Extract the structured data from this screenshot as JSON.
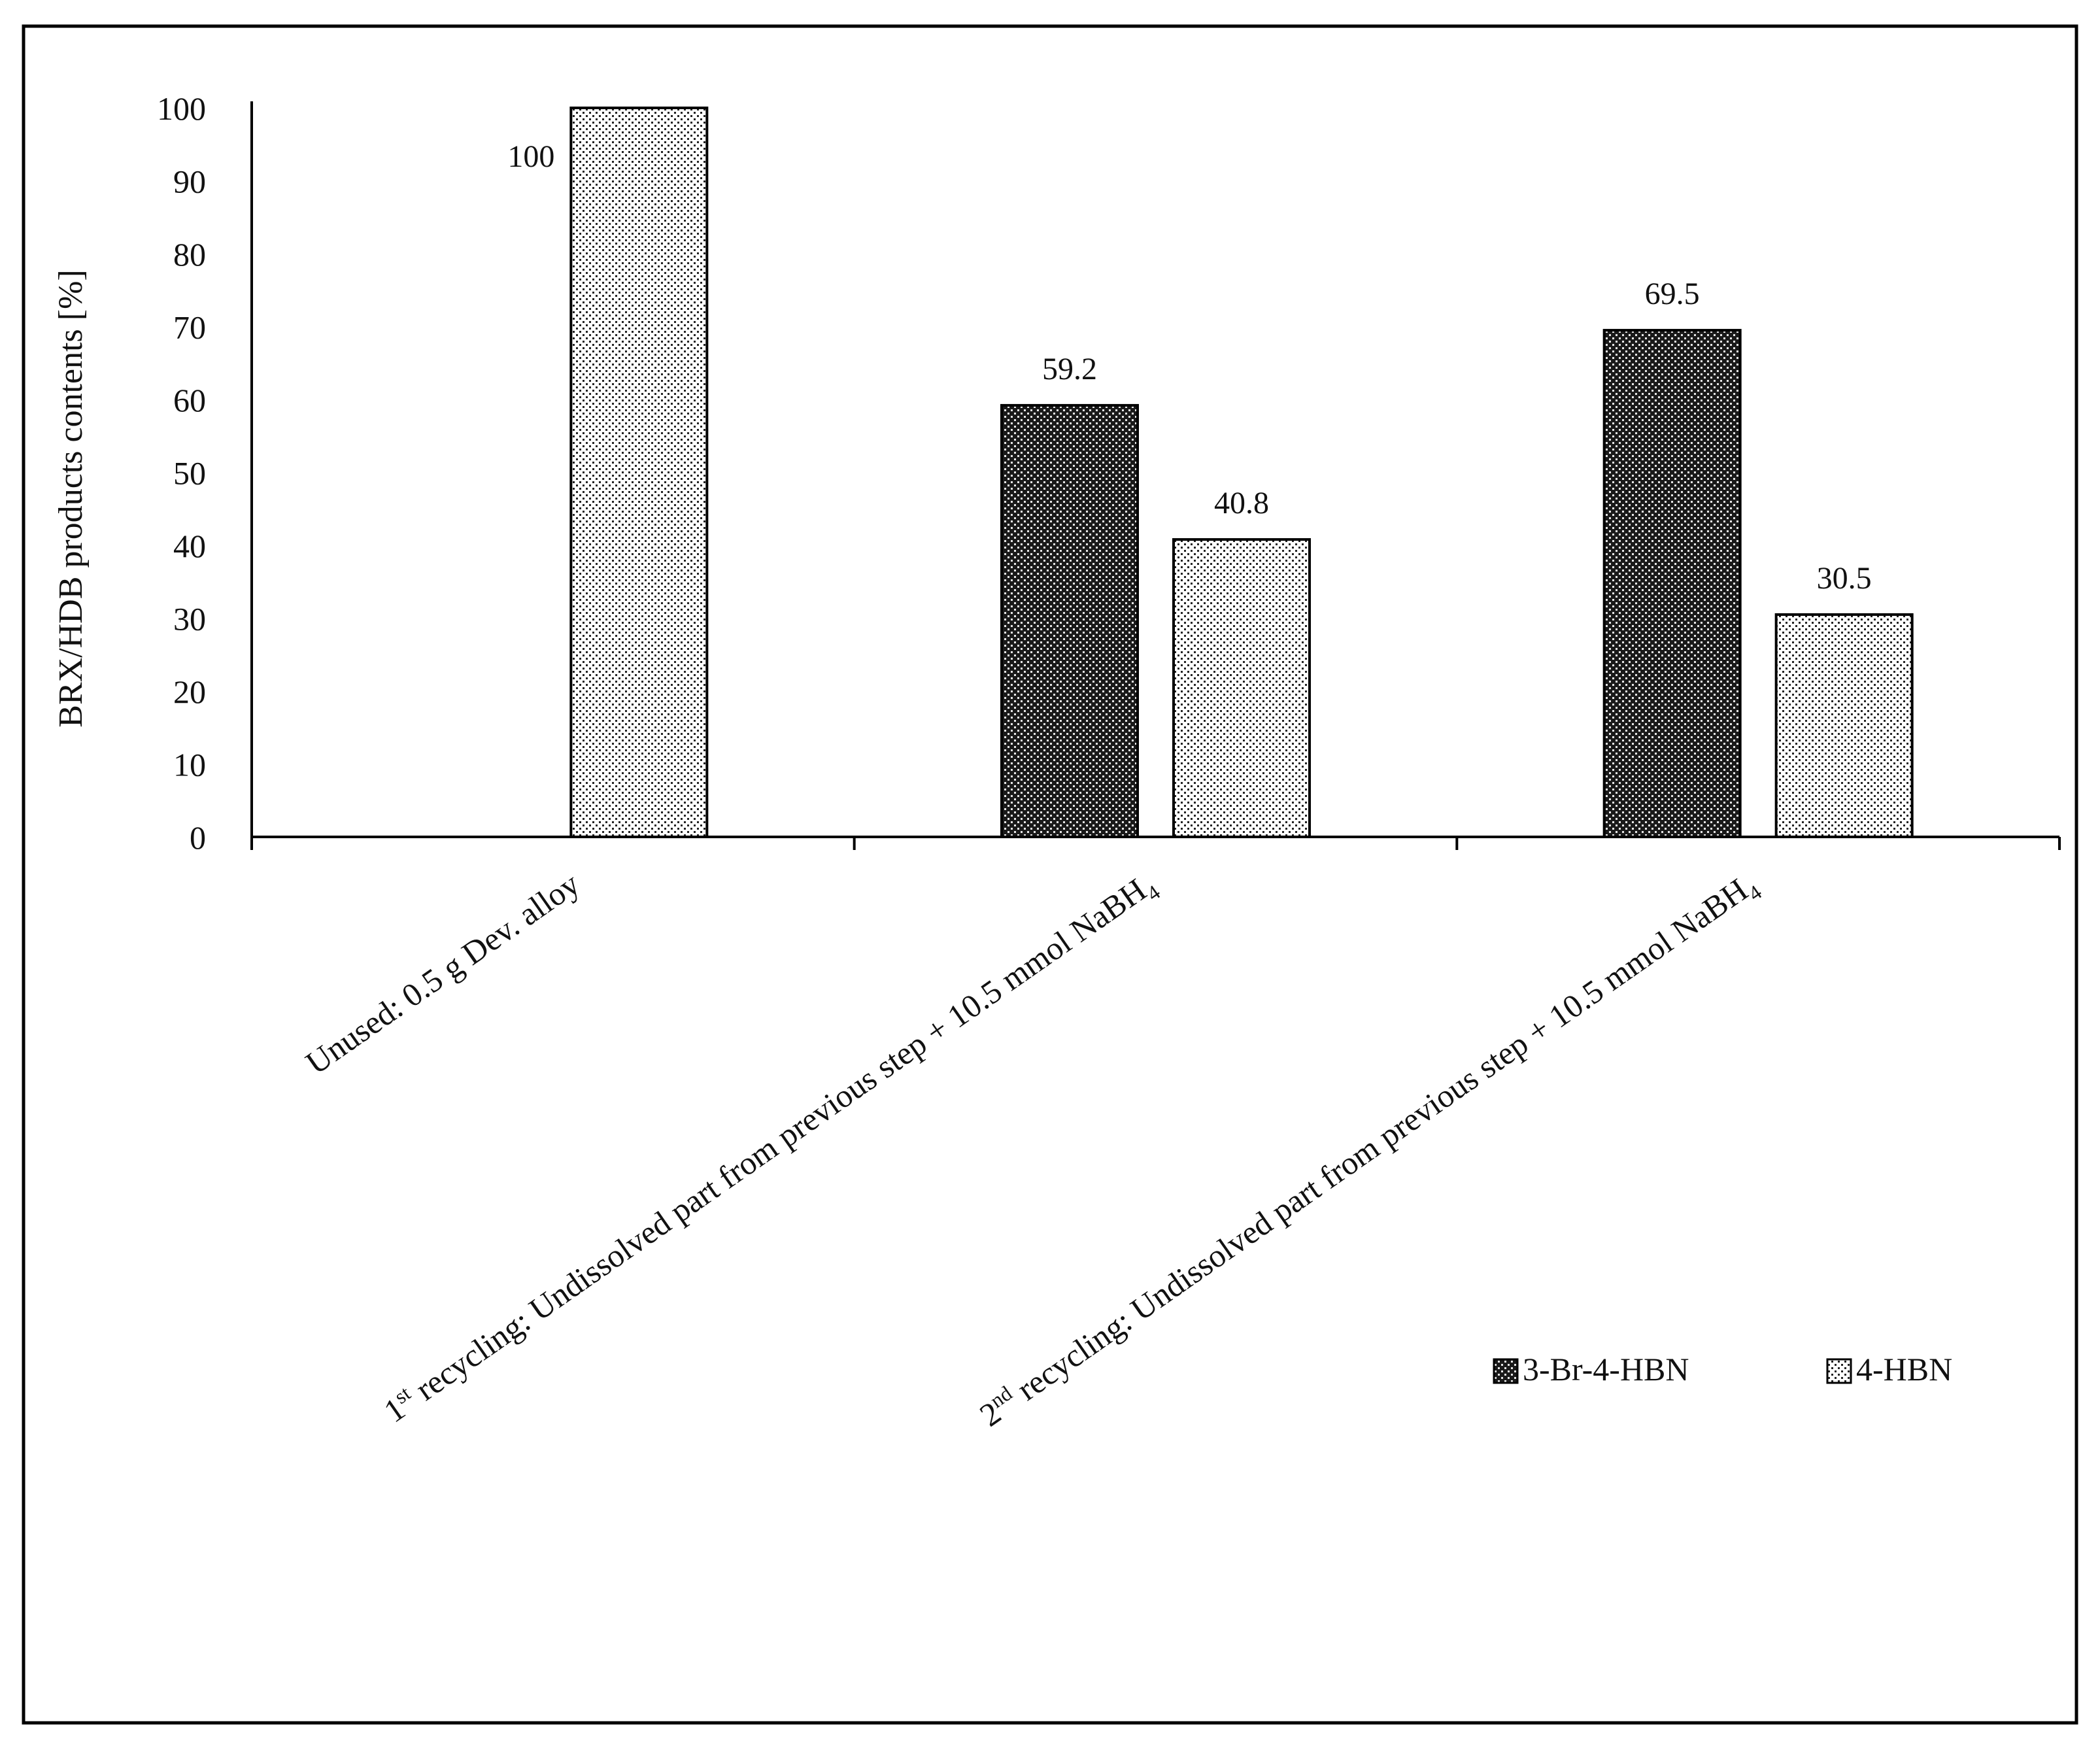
{
  "chart_data": {
    "type": "bar",
    "ylabel": "BRX/HDB products contents [%]",
    "ylim": [
      0,
      100
    ],
    "yticks": [
      0,
      10,
      20,
      30,
      40,
      50,
      60,
      70,
      80,
      90,
      100
    ],
    "grid": false,
    "legend_position": "right",
    "categories": [
      {
        "main": "Unused: 0.5 g Dev. alloy",
        "sup": "",
        "tail": ""
      },
      {
        "main": "1",
        "sup": "st",
        "tail": " recycling: Undissolved part from previous step + 10.5 mmol  NaBH",
        "sub": "4"
      },
      {
        "main": "2",
        "sup": "nd",
        "tail": " recycling: Undissolved part from previous step + 10.5 mmol NaBH",
        "sub": "4"
      }
    ],
    "series": [
      {
        "name": "3-Br-4-HBN",
        "values": [
          null,
          59.2,
          69.5
        ],
        "labels": [
          "",
          "59.2",
          "69.5"
        ],
        "pattern": "dark-dots",
        "color": "#1a1a1a"
      },
      {
        "name": "4-HBN",
        "values": [
          100,
          40.8,
          30.5
        ],
        "labels": [
          "100",
          "40.8",
          "30.5"
        ],
        "pattern": "light-dots",
        "color": "#ffffff"
      }
    ]
  }
}
